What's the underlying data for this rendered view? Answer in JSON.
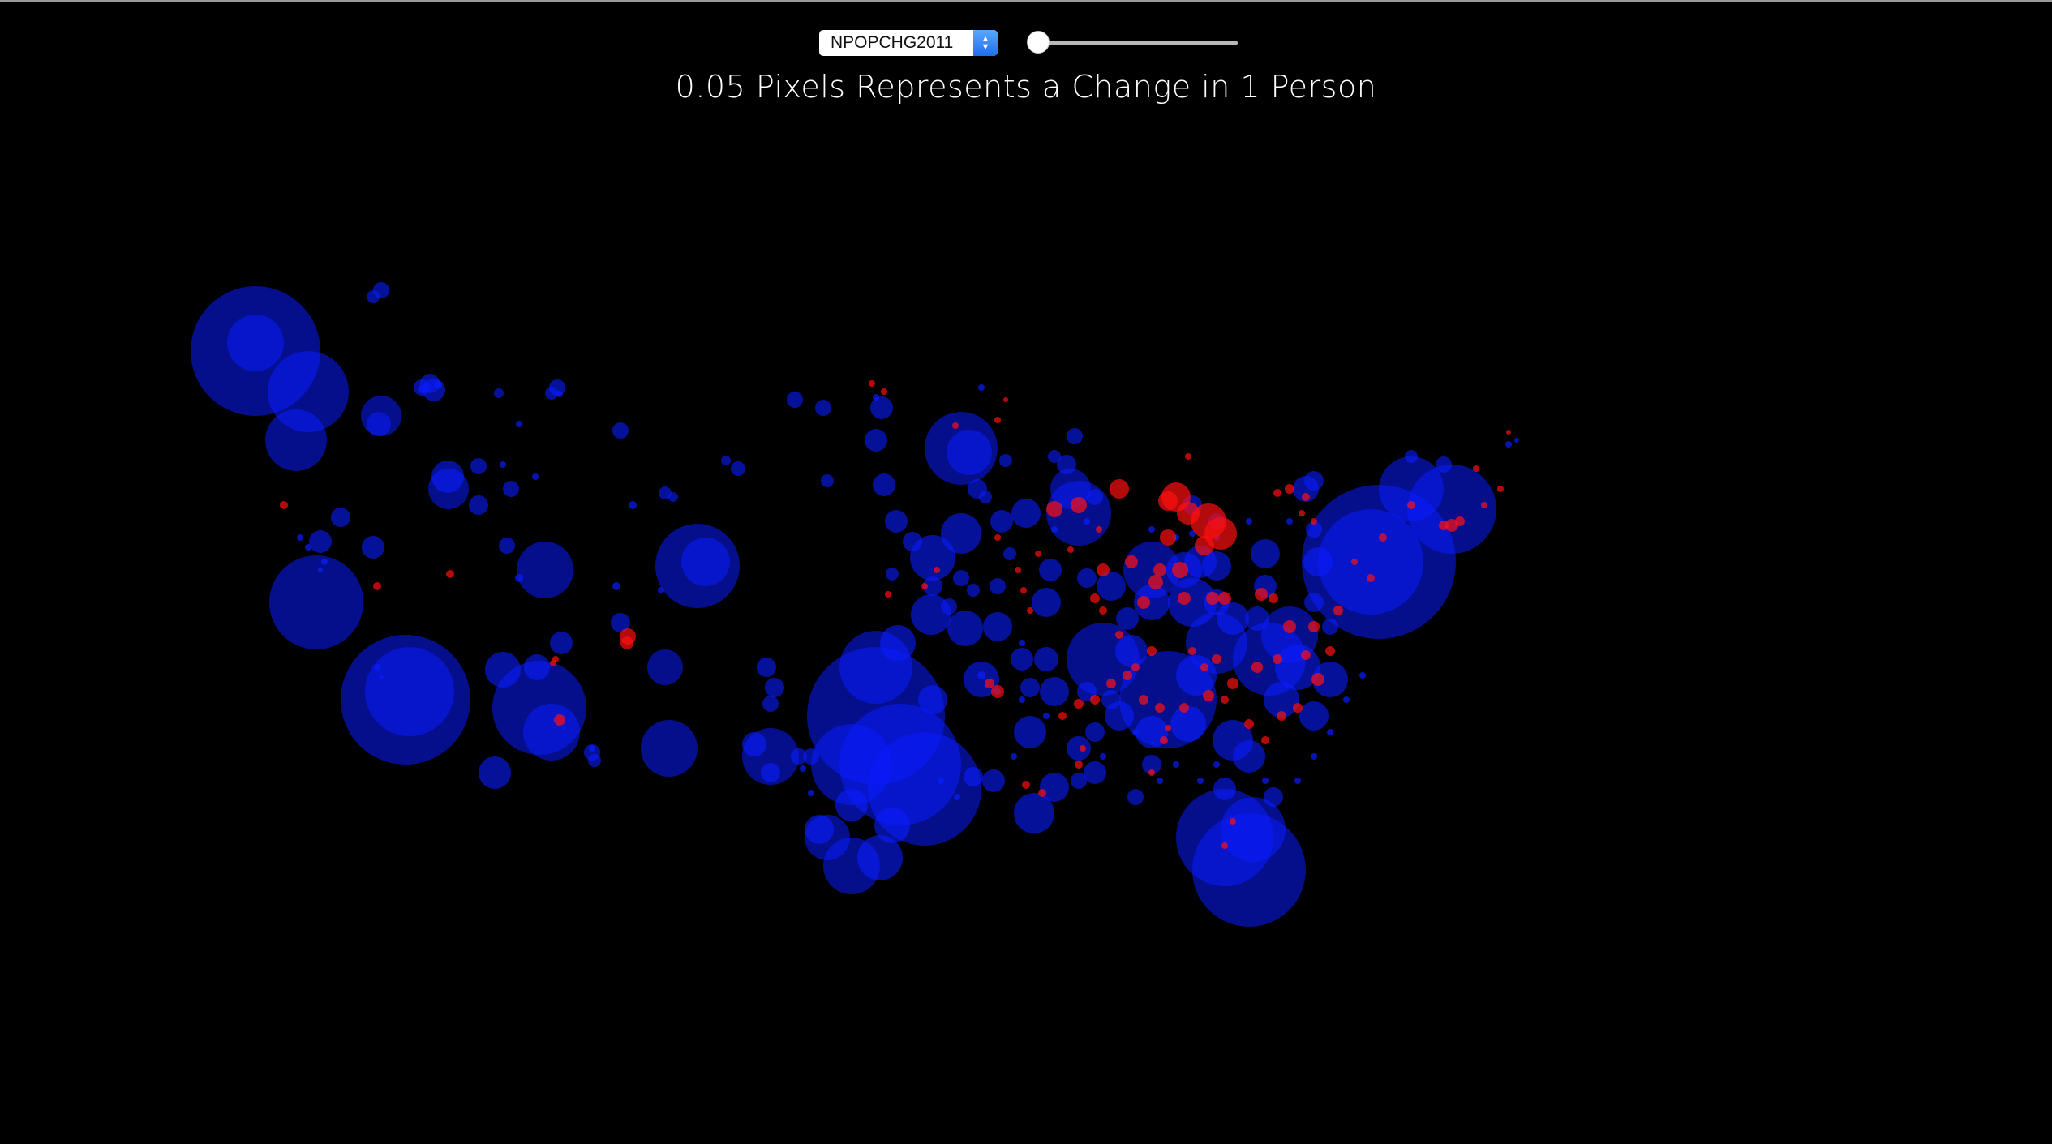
{
  "controls": {
    "variable_select": {
      "selected": "NPOPCHG2011"
    },
    "year_slider": {
      "value": 0
    }
  },
  "title": "0.05 Pixels Represents a Change in 1 Person",
  "colors": {
    "background": "#000000",
    "growth": "#0a1cff",
    "decline": "#ff1010",
    "text": "#ffffff"
  }
}
